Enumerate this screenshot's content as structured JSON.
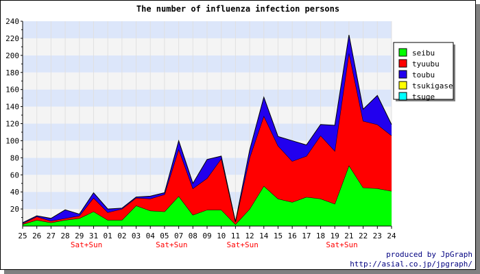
{
  "chart_data": {
    "type": "area",
    "stacked": true,
    "title": "The number of influenza infection persons",
    "xlabel": "",
    "ylabel": "",
    "ylim": [
      0,
      240
    ],
    "yticks": [
      20,
      40,
      60,
      80,
      100,
      120,
      140,
      160,
      180,
      200,
      220,
      240
    ],
    "grid": true,
    "legend_position": "right",
    "categories": [
      "25",
      "26",
      "27",
      "28",
      "29",
      "31",
      "01",
      "02",
      "03",
      "04",
      "05",
      "07",
      "08",
      "09",
      "10",
      "11",
      "12",
      "14",
      "15",
      "16",
      "17",
      "18",
      "19",
      "21",
      "22",
      "23",
      "24"
    ],
    "weekend_markers": [
      {
        "after": "29",
        "label": "Sat+Sun"
      },
      {
        "after": "05",
        "label": "Sat+Sun"
      },
      {
        "after": "11",
        "label": "Sat+Sun"
      },
      {
        "after": "19",
        "label": "Sat+Sun"
      }
    ],
    "series": [
      {
        "name": "seibu",
        "color": "#00ff00",
        "values": [
          2,
          7,
          4,
          7,
          9,
          17,
          7,
          7,
          24,
          18,
          17,
          35,
          13,
          19,
          19,
          2,
          20,
          47,
          32,
          28,
          34,
          32,
          26,
          71,
          45,
          44,
          41
        ]
      },
      {
        "name": "tyuubu",
        "color": "#ff0000",
        "values": [
          1,
          4,
          2,
          2,
          3,
          16,
          9,
          13,
          9,
          14,
          20,
          55,
          31,
          37,
          60,
          3,
          60,
          82,
          62,
          48,
          48,
          74,
          62,
          132,
          78,
          75,
          65
        ]
      },
      {
        "name": "toubu",
        "color": "#2200ee",
        "values": [
          1,
          1,
          3,
          10,
          2,
          6,
          4,
          1,
          1,
          3,
          2,
          10,
          6,
          22,
          3,
          0,
          9,
          22,
          11,
          24,
          13,
          13,
          30,
          21,
          14,
          34,
          13
        ]
      },
      {
        "name": "tsukigase",
        "color": "#ffff00",
        "values": [
          0,
          0,
          0,
          0,
          0,
          0,
          0,
          0,
          0,
          0,
          0,
          0,
          0,
          0,
          0,
          0,
          0,
          0,
          0,
          0,
          0,
          0,
          0,
          0,
          0,
          0,
          0
        ]
      },
      {
        "name": "tsuge",
        "color": "#00ffff",
        "values": [
          0,
          0,
          0,
          0,
          0,
          0,
          0,
          0,
          0,
          0,
          0,
          0,
          0,
          0,
          0,
          0,
          0,
          0,
          0,
          0,
          0,
          0,
          0,
          0,
          0,
          0,
          0
        ]
      }
    ]
  },
  "credits": {
    "line1": "produced by JpGraph",
    "line2": "http://asial.co.jp/jpgraph/"
  }
}
